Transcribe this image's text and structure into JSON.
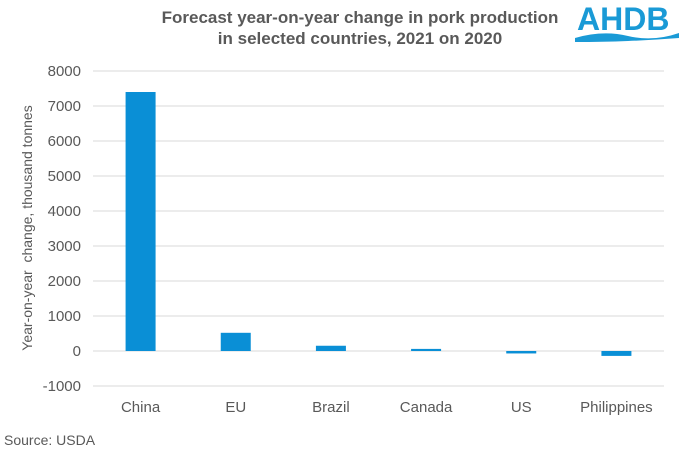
{
  "chart_data": {
    "type": "bar",
    "title": "Forecast year-on-year change in pork production in selected countries, 2021 on 2020",
    "title_lines": [
      "Forecast year-on-year change in pork production",
      "in selected countries, 2021 on 2020"
    ],
    "xlabel": "",
    "ylabel": "Year-on-year  change, thousand tonnes",
    "categories": [
      "China",
      "EU",
      "Brazil",
      "Canada",
      "US",
      "Philippines"
    ],
    "values": [
      7400,
      520,
      150,
      60,
      -70,
      -140
    ],
    "ylim": [
      -1000,
      8000
    ],
    "yticks": [
      -1000,
      0,
      1000,
      2000,
      3000,
      4000,
      5000,
      6000,
      7000,
      8000
    ],
    "grid": true,
    "legend": "none",
    "bar_color": "#0a8fd6",
    "grid_color": "#d9d9d9"
  },
  "logo": {
    "text": "AHDB",
    "color": "#1a9ad6"
  },
  "source": "Source:  USDA"
}
